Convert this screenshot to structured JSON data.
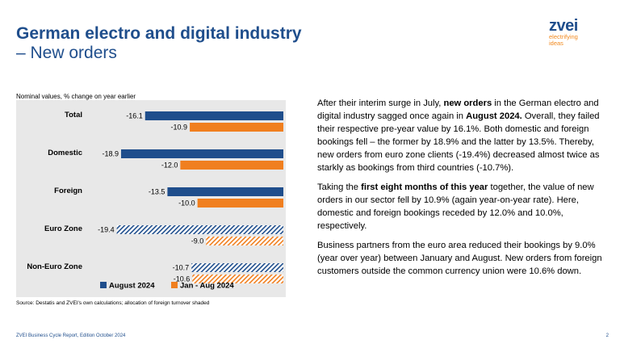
{
  "title": "German electro and digital industry",
  "subtitle": "– New orders",
  "logo": {
    "word": "zvei",
    "tagline_1": "electrifying",
    "tagline_2": "ideas"
  },
  "chart_note": "Nominal values, % change on year earlier",
  "chart_data": {
    "type": "bar",
    "orientation": "horizontal",
    "categories": [
      "Total",
      "Domestic",
      "Foreign",
      "Euro Zone",
      "Non-Euro Zone"
    ],
    "series": [
      {
        "name": "August 2024",
        "color": "#1f4e8c",
        "values": [
          -16.1,
          -18.9,
          -13.5,
          -19.4,
          -10.7
        ],
        "value_labels": [
          "-16.1",
          "-18.9",
          "-13.5",
          "-19.4",
          "-10.7"
        ]
      },
      {
        "name": "Jan - Aug 2024",
        "color": "#f07f1f",
        "values": [
          -10.9,
          -12.0,
          -10.0,
          -9.0,
          -10.6
        ],
        "value_labels": [
          "-10.9",
          "-12.0",
          "-10.0",
          "-9.0",
          "-10.6"
        ]
      }
    ],
    "hatched_categories": [
      "Euro Zone",
      "Non-Euro Zone"
    ],
    "xlim": [
      -22,
      0
    ],
    "legend": "bottom",
    "grid": false
  },
  "source": "Source: Destatis and ZVEI's own calculations; allocation of foreign turnover shaded",
  "paragraphs": [
    [
      {
        "text": "After their interim surge in July, "
      },
      {
        "text": "new orders",
        "bold": true
      },
      {
        "text": " in the German electro and digital industry sagged once again in "
      },
      {
        "text": "August 2024.",
        "bold": true
      },
      {
        "text": " Overall, they failed their respective pre-year value by 16.1%. Both domestic and foreign bookings fell – the former by 18.9% and the latter by 13.5%. Thereby, new orders from euro zone clients (-19.4%) decreased almost twice as starkly as bookings from third countries (-10.7%)."
      }
    ],
    [
      {
        "text": "Taking the "
      },
      {
        "text": "first eight months of this year",
        "bold": true
      },
      {
        "text": " together, the value of new orders in our sector fell by 10.9% (again year-on-year rate). Here, domestic and foreign bookings receded by 12.0% and 10.0%, respectively."
      }
    ],
    [
      {
        "text": "Business partners from the euro area reduced their bookings by 9.0% (year over year) between January and August. New orders from foreign customers outside the common currency union were 10.6% down."
      }
    ]
  ],
  "footer": "ZVEI Business Cycle Report, Edition October 2024",
  "page_number": "2"
}
